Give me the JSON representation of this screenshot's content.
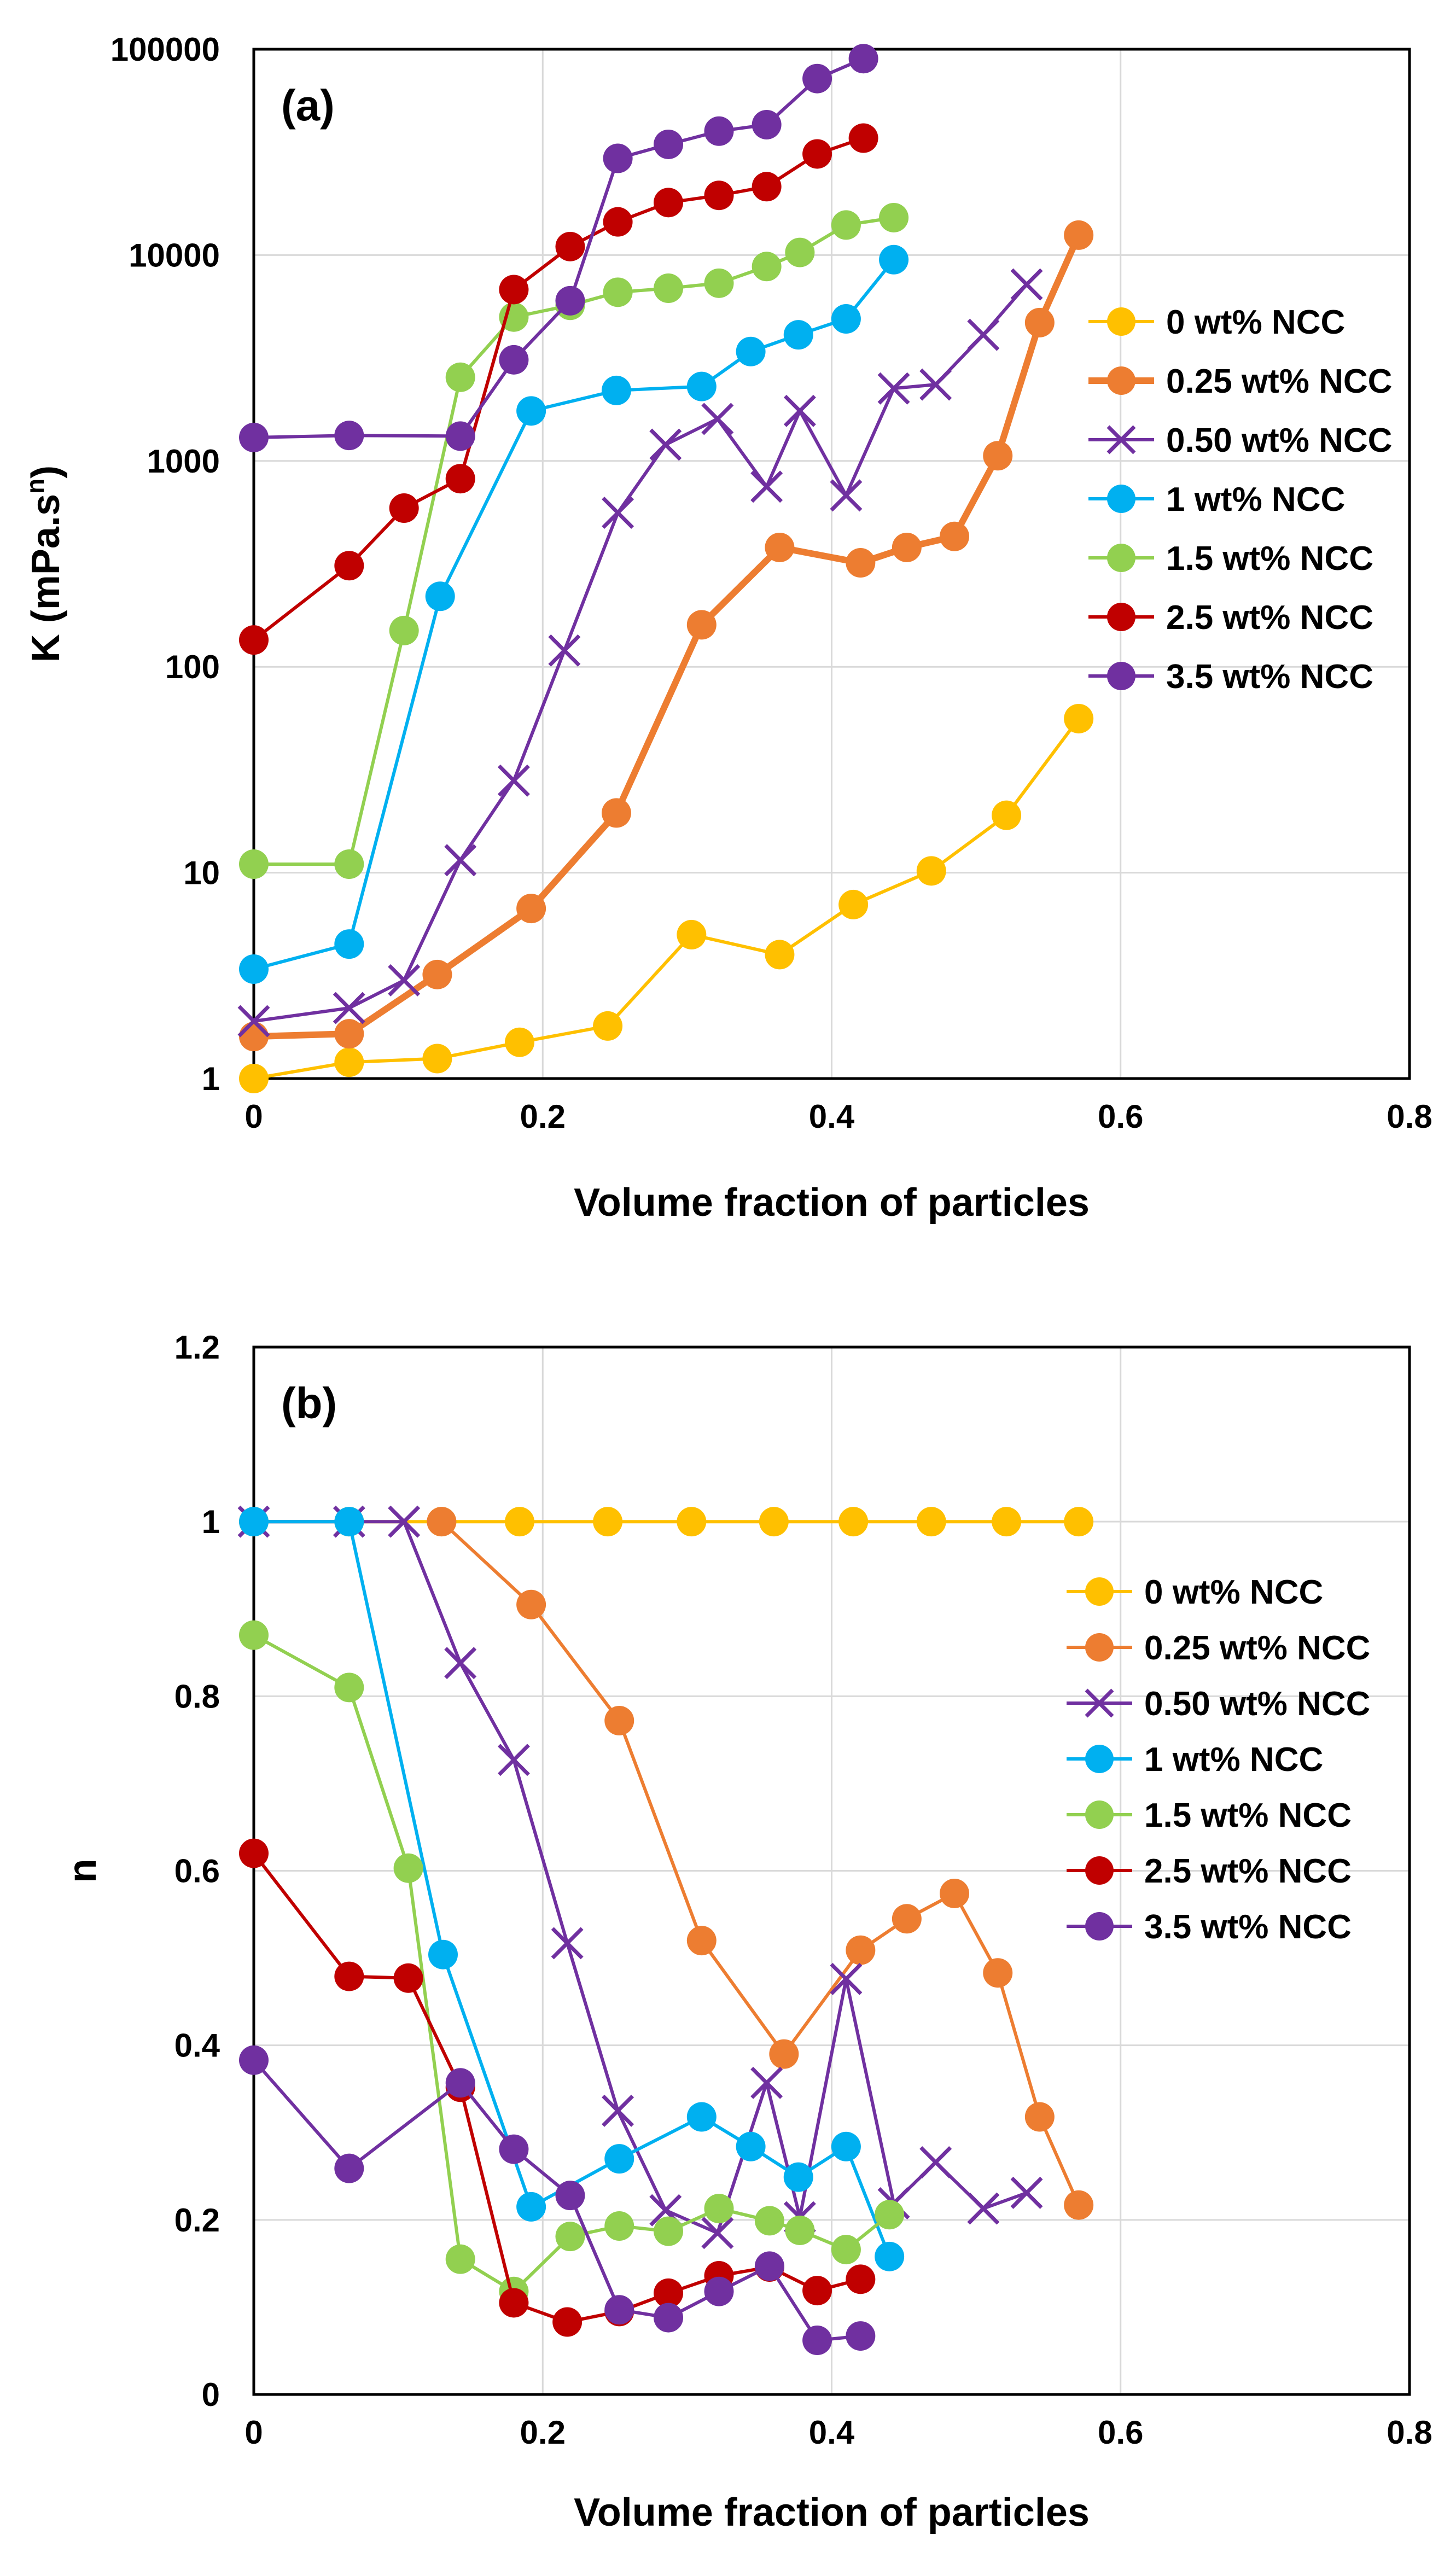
{
  "figure": {
    "panels": [
      {
        "label": "(a)",
        "xlabel": "Volume fraction of particles",
        "ylabel": "K (mPa.s^n)"
      },
      {
        "label": "(b)",
        "xlabel": "Volume fraction of particles",
        "ylabel": "n"
      }
    ]
  },
  "colors": {
    "0 wt% NCC": "#FFC000",
    "0.25 wt% NCC": "#ED7D31",
    "0.50 wt% NCC": "#7030A0",
    "1 wt% NCC": "#00B0F0",
    "1.5 wt% NCC": "#92D050",
    "2.5 wt% NCC": "#C00000",
    "3.5 wt% NCC": "#7030A0"
  },
  "chart_data": [
    {
      "type": "line",
      "title": "(a)",
      "xlabel": "Volume fraction of particles",
      "ylabel": "K (mPa.s^n)",
      "xlim": [
        0,
        0.8
      ],
      "xticks": [
        "0",
        "0.2",
        "0.4",
        "0.6",
        "0.8"
      ],
      "ylim": [
        1,
        100000
      ],
      "yscale": "log",
      "yticks": [
        "1",
        "10",
        "100",
        "1000",
        "10000",
        "100000"
      ],
      "grid": true,
      "legend": "right",
      "series": [
        {
          "name": "0 wt% NCC",
          "marker": "circle",
          "x": [
            0,
            0.066,
            0.127,
            0.184,
            0.245,
            0.303,
            0.364,
            0.415,
            0.469,
            0.521,
            0.571
          ],
          "y": [
            1.0,
            1.2,
            1.25,
            1.5,
            1.8,
            5.0,
            4.0,
            7.0,
            10.2,
            19,
            56
          ]
        },
        {
          "name": "0.25 wt% NCC",
          "marker": "circle",
          "x": [
            0,
            0.066,
            0.127,
            0.192,
            0.251,
            0.31,
            0.364,
            0.42,
            0.452,
            0.485,
            0.515,
            0.544,
            0.571
          ],
          "y": [
            1.6,
            1.65,
            3.2,
            6.7,
            19.5,
            160,
            380,
            320,
            380,
            430,
            1060,
            4700,
            12500
          ]
        },
        {
          "name": "0.50 wt% NCC",
          "marker": "x",
          "x": [
            0,
            0.066,
            0.104,
            0.143,
            0.18,
            0.215,
            0.252,
            0.285,
            0.321,
            0.355,
            0.378,
            0.41,
            0.443,
            0.472,
            0.505,
            0.535
          ],
          "y": [
            1.9,
            2.2,
            3.0,
            11.5,
            28,
            120,
            560,
            1200,
            1600,
            750,
            1750,
            680,
            2250,
            2350,
            4100,
            7200
          ]
        },
        {
          "name": "1 wt% NCC",
          "marker": "circle",
          "x": [
            0,
            0.066,
            0.129,
            0.192,
            0.251,
            0.31,
            0.344,
            0.377,
            0.41,
            0.443
          ],
          "y": [
            3.4,
            4.5,
            220,
            1750,
            2200,
            2300,
            3400,
            4100,
            4900,
            9500
          ]
        },
        {
          "name": "1.5 wt% NCC",
          "marker": "circle",
          "x": [
            0,
            0.066,
            0.104,
            0.143,
            0.18,
            0.219,
            0.252,
            0.287,
            0.322,
            0.355,
            0.378,
            0.41,
            0.443
          ],
          "y": [
            11,
            11,
            150,
            2550,
            5000,
            5700,
            6600,
            6900,
            7300,
            8800,
            10300,
            14000,
            15200
          ]
        },
        {
          "name": "2.5 wt% NCC",
          "marker": "circle",
          "x": [
            0,
            0.066,
            0.104,
            0.143,
            0.18,
            0.219,
            0.252,
            0.287,
            0.322,
            0.355,
            0.39,
            0.422
          ],
          "y": [
            135,
            310,
            590,
            820,
            6800,
            11000,
            14500,
            18000,
            19500,
            21500,
            31000,
            37000
          ]
        },
        {
          "name": "3.5 wt% NCC",
          "marker": "circle",
          "x": [
            0,
            0.066,
            0.143,
            0.18,
            0.219,
            0.252,
            0.287,
            0.322,
            0.355,
            0.39,
            0.422
          ],
          "y": [
            1300,
            1330,
            1320,
            3100,
            6000,
            29500,
            34500,
            40000,
            43000,
            72000,
            90000
          ]
        }
      ]
    },
    {
      "type": "line",
      "title": "(b)",
      "xlabel": "Volume fraction of particles",
      "ylabel": "n",
      "xlim": [
        0,
        0.8
      ],
      "xticks": [
        "0",
        "0.2",
        "0.4",
        "0.6",
        "0.8"
      ],
      "ylim": [
        0,
        1.2
      ],
      "yticks": [
        "0",
        "0.2",
        "0.4",
        "0.6",
        "0.8",
        "1",
        "1.2"
      ],
      "grid": true,
      "legend": "right",
      "series": [
        {
          "name": "0 wt% NCC",
          "marker": "circle",
          "x": [
            0,
            0.066,
            0.13,
            0.184,
            0.245,
            0.303,
            0.36,
            0.415,
            0.469,
            0.521,
            0.571
          ],
          "y": [
            1,
            1,
            1,
            1,
            1,
            1,
            1,
            1,
            1,
            1,
            1
          ]
        },
        {
          "name": "0.25 wt% NCC",
          "marker": "circle",
          "x": [
            0.13,
            0.192,
            0.253,
            0.31,
            0.367,
            0.42,
            0.452,
            0.485,
            0.515,
            0.544,
            0.571
          ],
          "y": [
            1.0,
            0.905,
            0.772,
            0.52,
            0.39,
            0.509,
            0.545,
            0.574,
            0.483,
            0.318,
            0.217
          ]
        },
        {
          "name": "0.50 wt% NCC",
          "marker": "x",
          "x": [
            0,
            0.066,
            0.104,
            0.143,
            0.18,
            0.217,
            0.252,
            0.285,
            0.321,
            0.355,
            0.378,
            0.41,
            0.443,
            0.472,
            0.505,
            0.535
          ],
          "y": [
            1,
            1,
            1,
            0.838,
            0.727,
            0.517,
            0.325,
            0.211,
            0.185,
            0.357,
            0.203,
            0.476,
            0.219,
            0.266,
            0.213,
            0.231
          ]
        },
        {
          "name": "1 wt% NCC",
          "marker": "circle",
          "x": [
            0,
            0.066,
            0.131,
            0.192,
            0.253,
            0.31,
            0.344,
            0.377,
            0.41,
            0.44
          ],
          "y": [
            1,
            1,
            0.504,
            0.215,
            0.27,
            0.318,
            0.284,
            0.249,
            0.284,
            0.158
          ]
        },
        {
          "name": "1.5 wt% NCC",
          "marker": "circle",
          "x": [
            0,
            0.066,
            0.107,
            0.143,
            0.18,
            0.219,
            0.253,
            0.287,
            0.322,
            0.357,
            0.378,
            0.41,
            0.44
          ],
          "y": [
            0.87,
            0.81,
            0.603,
            0.155,
            0.118,
            0.181,
            0.193,
            0.187,
            0.213,
            0.199,
            0.188,
            0.166,
            0.206
          ]
        },
        {
          "name": "2.5 wt% NCC",
          "marker": "circle",
          "x": [
            0,
            0.066,
            0.107,
            0.143,
            0.18,
            0.217,
            0.253,
            0.287,
            0.322,
            0.357,
            0.39,
            0.42
          ],
          "y": [
            0.62,
            0.479,
            0.477,
            0.352,
            0.105,
            0.083,
            0.095,
            0.116,
            0.136,
            0.146,
            0.119,
            0.132
          ]
        },
        {
          "name": "3.5 wt% NCC",
          "marker": "circle",
          "x": [
            0,
            0.066,
            0.143,
            0.18,
            0.219,
            0.253,
            0.287,
            0.322,
            0.357,
            0.39,
            0.42
          ],
          "y": [
            0.383,
            0.259,
            0.357,
            0.281,
            0.228,
            0.097,
            0.088,
            0.118,
            0.147,
            0.062,
            0.067
          ]
        }
      ]
    }
  ]
}
